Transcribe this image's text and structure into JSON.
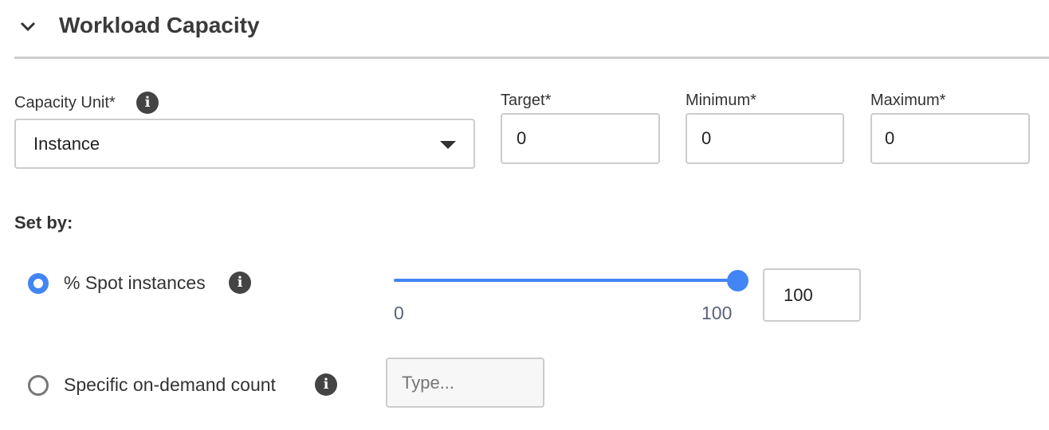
{
  "section": {
    "title": "Workload Capacity",
    "expanded": true
  },
  "capacity_unit": {
    "label": "Capacity Unit*",
    "value": "Instance"
  },
  "target": {
    "label": "Target*",
    "value": "0"
  },
  "minimum": {
    "label": "Minimum*",
    "value": "0"
  },
  "maximum": {
    "label": "Maximum*",
    "value": "0"
  },
  "set_by": {
    "label": "Set by:",
    "spot": {
      "label": "% Spot instances",
      "selected": true,
      "slider_min": "0",
      "slider_max": "100",
      "slider_value": 100,
      "input_value": "100"
    },
    "on_demand": {
      "label": "Specific on-demand count",
      "selected": false,
      "placeholder": "Type..."
    }
  },
  "colors": {
    "accent": "#4285f4",
    "tick": "#5a6478"
  }
}
